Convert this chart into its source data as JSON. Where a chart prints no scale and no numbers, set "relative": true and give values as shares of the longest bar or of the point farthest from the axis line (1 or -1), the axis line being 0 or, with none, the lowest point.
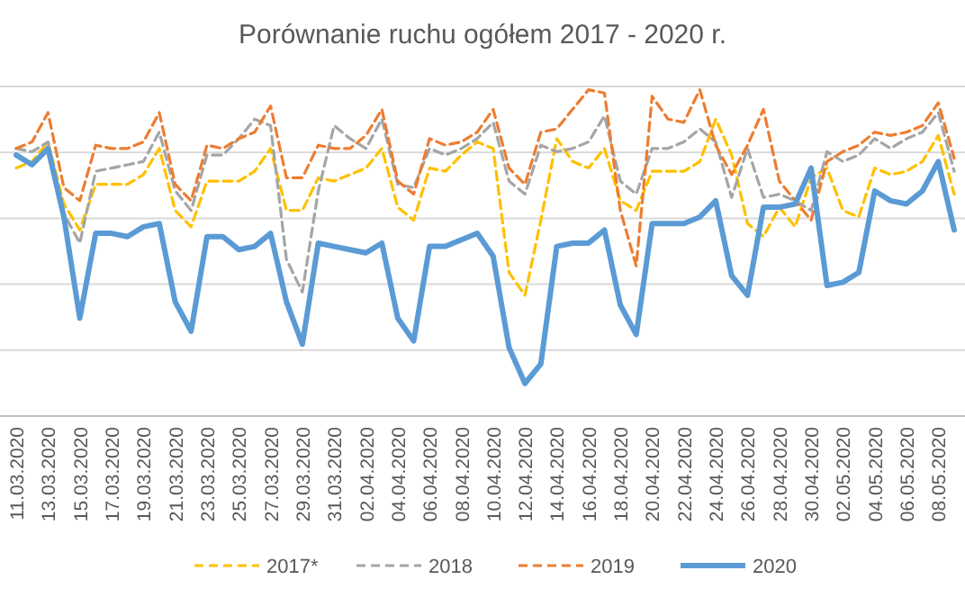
{
  "chart_data": {
    "type": "line",
    "title": "Porównanie ruchu ogółem 2017 - 2020 r.",
    "relative": true,
    "grid": "y",
    "legend": "bottom",
    "marker": "none",
    "categories": [
      "11.03.2020",
      null,
      "13.03.2020",
      null,
      "15.03.2020",
      null,
      "17.03.2020",
      null,
      "19.03.2020",
      null,
      "21.03.2020",
      null,
      "23.03.2020",
      null,
      "25.03.2020",
      null,
      "27.03.2020",
      null,
      "29.03.2020",
      null,
      "31.03.2020",
      null,
      "02.04.2020",
      null,
      "04.04.2020",
      null,
      "06.04.2020",
      null,
      "08.04.2020",
      null,
      "10.04.2020",
      null,
      "12.04.2020",
      null,
      "14.04.2020",
      null,
      "16.04.2020",
      null,
      "18.04.2020",
      null,
      "20.04.2020",
      null,
      "22.04.2020",
      null,
      "24.04.2020",
      null,
      "26.04.2020",
      null,
      "28.04.2020",
      null,
      "30.04.2020",
      null,
      "02.05.2020",
      null,
      "04.05.2020",
      null,
      "06.05.2020",
      null,
      "08.05.2020",
      null
    ],
    "series": [
      {
        "name": "2017*",
        "color": "#ffc000",
        "line_style": "dashed",
        "values": [
          0.76,
          0.78,
          0.84,
          0.65,
          0.57,
          0.71,
          0.71,
          0.71,
          0.74,
          0.82,
          0.63,
          0.58,
          0.72,
          0.72,
          0.72,
          0.75,
          0.82,
          0.63,
          0.63,
          0.73,
          0.72,
          0.74,
          0.76,
          0.82,
          0.64,
          0.6,
          0.76,
          0.75,
          0.8,
          0.84,
          0.82,
          0.44,
          0.37,
          0.6,
          0.85,
          0.78,
          0.76,
          0.82,
          0.66,
          0.63,
          0.75,
          0.75,
          0.75,
          0.78,
          0.91,
          0.8,
          0.59,
          0.55,
          0.64,
          0.58,
          0.73,
          0.76,
          0.63,
          0.61,
          0.76,
          0.74,
          0.75,
          0.78,
          0.86,
          0.68
        ]
      },
      {
        "name": "2018",
        "color": "#a5a5a5",
        "line_style": "dashed",
        "values": [
          0.82,
          0.81,
          0.84,
          0.62,
          0.53,
          0.75,
          0.76,
          0.77,
          0.78,
          0.87,
          0.69,
          0.63,
          0.8,
          0.8,
          0.85,
          0.91,
          0.89,
          0.48,
          0.38,
          0.69,
          0.89,
          0.85,
          0.82,
          0.91,
          0.71,
          0.7,
          0.82,
          0.8,
          0.82,
          0.85,
          0.9,
          0.72,
          0.68,
          0.83,
          0.81,
          0.82,
          0.84,
          0.92,
          0.72,
          0.68,
          0.82,
          0.82,
          0.84,
          0.88,
          0.84,
          0.67,
          0.82,
          0.67,
          0.68,
          0.66,
          0.63,
          0.81,
          0.78,
          0.8,
          0.85,
          0.82,
          0.85,
          0.87,
          0.93,
          0.75
        ]
      },
      {
        "name": "2019",
        "color": "#ed7d31",
        "line_style": "dashed",
        "values": [
          0.82,
          0.84,
          0.93,
          0.7,
          0.66,
          0.83,
          0.82,
          0.82,
          0.84,
          0.93,
          0.71,
          0.66,
          0.83,
          0.82,
          0.85,
          0.87,
          0.95,
          0.73,
          0.73,
          0.83,
          0.82,
          0.82,
          0.86,
          0.94,
          0.72,
          0.68,
          0.85,
          0.83,
          0.84,
          0.87,
          0.94,
          0.76,
          0.71,
          0.87,
          0.88,
          0.94,
          1.0,
          0.99,
          0.63,
          0.46,
          0.98,
          0.91,
          0.9,
          1.0,
          0.83,
          0.74,
          0.83,
          0.94,
          0.72,
          0.66,
          0.6,
          0.78,
          0.81,
          0.83,
          0.87,
          0.86,
          0.87,
          0.89,
          0.96,
          0.79
        ]
      },
      {
        "name": "2020",
        "color": "#5b9bd5",
        "line_style": "solid",
        "values": [
          0.8,
          0.77,
          0.82,
          0.61,
          0.3,
          0.56,
          0.56,
          0.55,
          0.58,
          0.59,
          0.35,
          0.26,
          0.55,
          0.55,
          0.51,
          0.52,
          0.56,
          0.35,
          0.22,
          0.53,
          0.52,
          0.51,
          0.5,
          0.53,
          0.3,
          0.23,
          0.52,
          0.52,
          0.54,
          0.56,
          0.49,
          0.21,
          0.1,
          0.16,
          0.52,
          0.53,
          0.53,
          0.57,
          0.34,
          0.25,
          0.59,
          0.59,
          0.59,
          0.61,
          0.66,
          0.43,
          0.37,
          0.64,
          0.64,
          0.65,
          0.76,
          0.4,
          0.41,
          0.44,
          0.69,
          0.66,
          0.65,
          0.69,
          0.78,
          0.57
        ]
      }
    ]
  }
}
